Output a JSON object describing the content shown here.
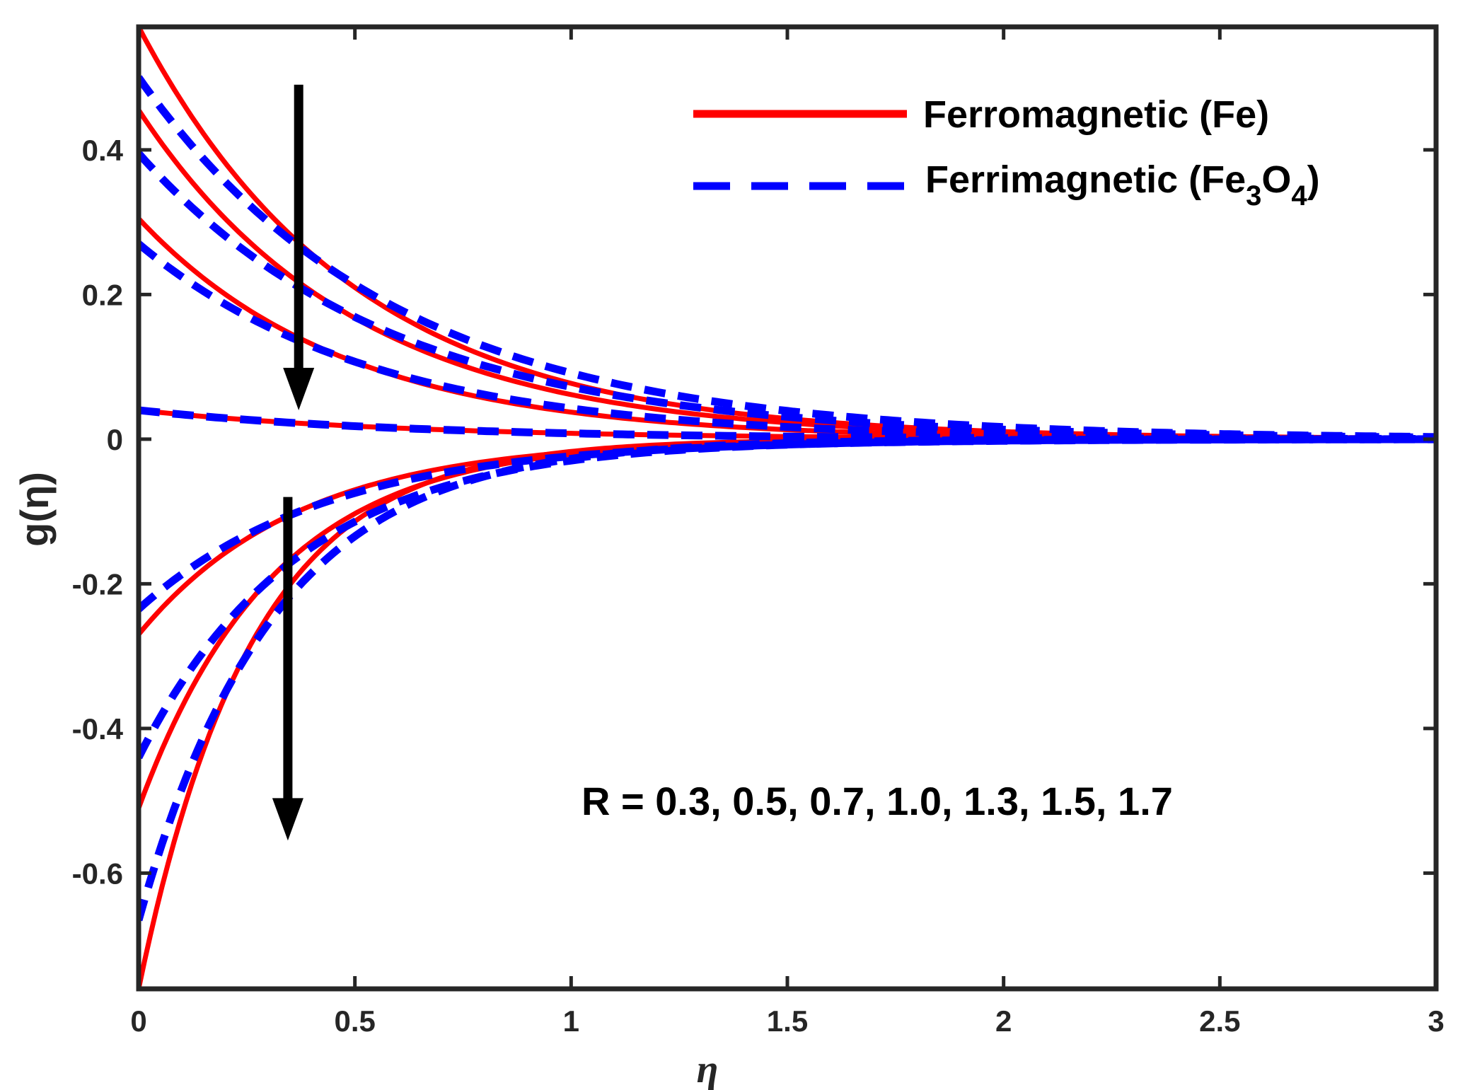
{
  "chart_data": {
    "type": "line",
    "xlabel": "η",
    "ylabel": "g(η)",
    "xlim": [
      0,
      3
    ],
    "ylim": [
      -0.76,
      0.57
    ],
    "xticks": [
      "0",
      "0.5",
      "1",
      "1.5",
      "2",
      "2.5",
      "3"
    ],
    "yticks": [
      "-0.6",
      "-0.4",
      "-0.2",
      "0",
      "0.2",
      "0.4"
    ],
    "grid": false,
    "legend_position": "top-right",
    "legend": [
      {
        "label": "Ferromagnetic (Fe)",
        "color": "#ff0000",
        "style": "solid"
      },
      {
        "label_main": "Ferrimagnetic (Fe",
        "sub1": "3",
        "mid": "O",
        "sub2": "4",
        "close": ")",
        "color": "#0000ff",
        "style": "dashed"
      }
    ],
    "annotation": "R = 0.3, 0.5, 0.7, 1.0, 1.3, 1.5, 1.7",
    "series": [
      {
        "group": "Fe",
        "color": "#ff0000",
        "style": "solid",
        "g0": 0.57,
        "decay": 2.0,
        "x": [
          0,
          0.5,
          1,
          1.5,
          2,
          2.5,
          3
        ],
        "y": [
          0.57,
          0.21,
          0.077,
          0.028,
          0.01,
          0.004,
          0.001
        ]
      },
      {
        "group": "Fe",
        "color": "#ff0000",
        "style": "solid",
        "g0": 0.455,
        "decay": 2.0,
        "x": [
          0,
          0.5,
          1,
          1.5,
          2,
          2.5,
          3
        ],
        "y": [
          0.455,
          0.167,
          0.062,
          0.023,
          0.008,
          0.003,
          0.001
        ]
      },
      {
        "group": "Fe",
        "color": "#ff0000",
        "style": "solid",
        "g0": 0.305,
        "decay": 2.1,
        "x": [
          0,
          0.5,
          1,
          1.5,
          2,
          2.5,
          3
        ],
        "y": [
          0.305,
          0.106,
          0.037,
          0.013,
          0.005,
          0.002,
          0.001
        ]
      },
      {
        "group": "Fe",
        "color": "#ff0000",
        "style": "solid",
        "g0": 0.04,
        "decay": 1.6,
        "x": [
          0,
          0.5,
          1,
          1.5,
          2,
          2.5,
          3
        ],
        "y": [
          0.04,
          0.018,
          0.008,
          0.004,
          0.002,
          0.001,
          0.0
        ]
      },
      {
        "group": "Fe",
        "color": "#ff0000",
        "style": "solid",
        "g0": -0.27,
        "decay": 2.7,
        "x": [
          0,
          0.5,
          1,
          1.5,
          2,
          2.5,
          3
        ],
        "y": [
          -0.27,
          -0.07,
          -0.018,
          -0.005,
          -0.001,
          0.0,
          0.0
        ]
      },
      {
        "group": "Fe",
        "color": "#ff0000",
        "style": "solid",
        "g0": -0.51,
        "decay": 3.2,
        "x": [
          0,
          0.5,
          1,
          1.5,
          2,
          2.5,
          3
        ],
        "y": [
          -0.51,
          -0.1,
          -0.021,
          -0.004,
          -0.001,
          0.0,
          0.0
        ]
      },
      {
        "group": "Fe",
        "color": "#ff0000",
        "style": "solid",
        "g0": -0.76,
        "decay": 3.8,
        "x": [
          0,
          0.5,
          1,
          1.5,
          2,
          2.5,
          3
        ],
        "y": [
          -0.76,
          -0.13,
          -0.02,
          -0.004,
          -0.001,
          0.0,
          0.0
        ]
      },
      {
        "group": "Fe3O4",
        "color": "#0000ff",
        "style": "dashed",
        "g0": 0.5,
        "decay": 1.7,
        "x": [
          0,
          0.5,
          1,
          1.5,
          2,
          2.5,
          3
        ],
        "y": [
          0.5,
          0.21,
          0.091,
          0.039,
          0.017,
          0.007,
          0.003
        ]
      },
      {
        "group": "Fe3O4",
        "color": "#0000ff",
        "style": "dashed",
        "g0": 0.395,
        "decay": 1.7,
        "x": [
          0,
          0.5,
          1,
          1.5,
          2,
          2.5,
          3
        ],
        "y": [
          0.395,
          0.169,
          0.072,
          0.031,
          0.013,
          0.006,
          0.002
        ]
      },
      {
        "group": "Fe3O4",
        "color": "#0000ff",
        "style": "dashed",
        "g0": 0.27,
        "decay": 1.85,
        "x": [
          0,
          0.5,
          1,
          1.5,
          2,
          2.5,
          3
        ],
        "y": [
          0.27,
          0.107,
          0.042,
          0.017,
          0.007,
          0.003,
          0.001
        ]
      },
      {
        "group": "Fe3O4",
        "color": "#0000ff",
        "style": "dashed",
        "g0": 0.04,
        "decay": 1.6,
        "x": [
          0,
          0.5,
          1,
          1.5,
          2,
          2.5,
          3
        ],
        "y": [
          0.04,
          0.018,
          0.008,
          0.004,
          0.002,
          0.001,
          0.0
        ]
      },
      {
        "group": "Fe3O4",
        "color": "#0000ff",
        "style": "dashed",
        "g0": -0.235,
        "decay": 2.3,
        "x": [
          0,
          0.5,
          1,
          1.5,
          2,
          2.5,
          3
        ],
        "y": [
          -0.235,
          -0.075,
          -0.024,
          -0.007,
          -0.002,
          -0.001,
          0.0
        ]
      },
      {
        "group": "Fe3O4",
        "color": "#0000ff",
        "style": "dashed",
        "g0": -0.44,
        "decay": 2.7,
        "x": [
          0,
          0.5,
          1,
          1.5,
          2,
          2.5,
          3
        ],
        "y": [
          -0.44,
          -0.11,
          -0.03,
          -0.008,
          -0.002,
          0.0,
          0.0
        ]
      },
      {
        "group": "Fe3O4",
        "color": "#0000ff",
        "style": "dashed",
        "g0": -0.665,
        "decay": 3.2,
        "x": [
          0,
          0.5,
          1,
          1.5,
          2,
          2.5,
          3
        ],
        "y": [
          -0.665,
          -0.13,
          -0.027,
          -0.005,
          -0.001,
          0.0,
          0.0
        ]
      }
    ],
    "arrows": [
      {
        "x": 0.37,
        "y_start": 0.49,
        "y_end": 0.04
      },
      {
        "x": 0.345,
        "y_start": -0.08,
        "y_end": -0.555
      }
    ]
  }
}
